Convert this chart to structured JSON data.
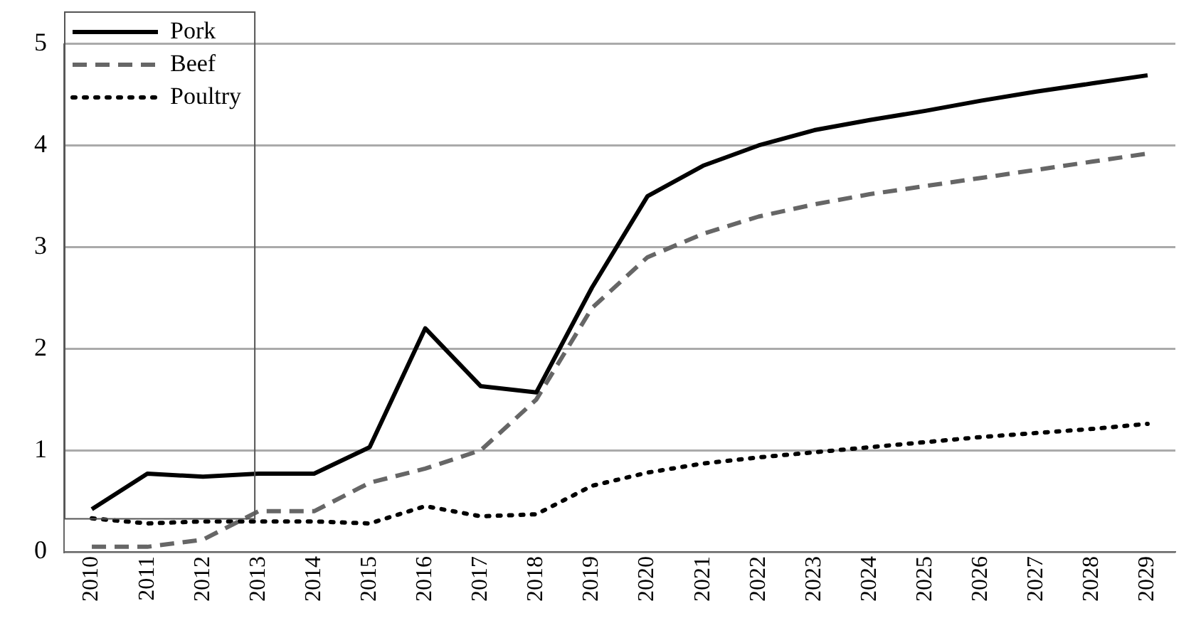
{
  "chart_data": {
    "type": "line",
    "categories": [
      "2010",
      "2011",
      "2012",
      "2013",
      "2014",
      "2015",
      "2016",
      "2017",
      "2018",
      "2019",
      "2020",
      "2021",
      "2022",
      "2023",
      "2024",
      "2025",
      "2026",
      "2027",
      "2028",
      "2029"
    ],
    "series": [
      {
        "name": "Pork",
        "color": "#000000",
        "line_style": "solid",
        "values": [
          0.42,
          0.77,
          0.74,
          0.77,
          0.77,
          1.03,
          2.2,
          1.63,
          1.57,
          2.6,
          3.5,
          3.8,
          4.0,
          4.15,
          4.25,
          4.34,
          4.44,
          4.53,
          4.61,
          4.69
        ]
      },
      {
        "name": "Beef",
        "color": "#666666",
        "line_style": "dashed",
        "values": [
          0.05,
          0.05,
          0.12,
          0.4,
          0.4,
          0.68,
          0.82,
          1.0,
          1.5,
          2.4,
          2.9,
          3.13,
          3.3,
          3.42,
          3.52,
          3.6,
          3.68,
          3.76,
          3.84,
          3.92
        ]
      },
      {
        "name": "Poultry",
        "color": "#000000",
        "line_style": "dotted",
        "values": [
          0.33,
          0.28,
          0.3,
          0.3,
          0.3,
          0.28,
          0.45,
          0.35,
          0.37,
          0.65,
          0.78,
          0.87,
          0.93,
          0.98,
          1.03,
          1.08,
          1.13,
          1.17,
          1.21,
          1.26
        ]
      }
    ],
    "ylim": [
      0,
      5
    ],
    "yticks": [
      0,
      1,
      2,
      3,
      4,
      5
    ],
    "grid": "y",
    "legend": "top left",
    "marker": "none"
  }
}
